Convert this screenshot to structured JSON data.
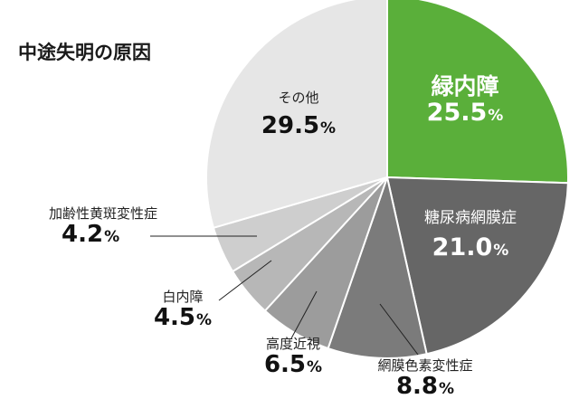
{
  "chart_data": {
    "type": "pie",
    "title": "中途失明の原因",
    "unit": "%",
    "slices": [
      {
        "label": "緑内障",
        "value": 25.5,
        "display": "25.5",
        "color": "#5aaf3a"
      },
      {
        "label": "糖尿病網膜症",
        "value": 21.0,
        "display": "21.0",
        "color": "#666666"
      },
      {
        "label": "網膜色素変性症",
        "value": 8.8,
        "display": "8.8",
        "color": "#7b7b7b"
      },
      {
        "label": "高度近視",
        "value": 6.5,
        "display": "6.5",
        "color": "#9c9c9c"
      },
      {
        "label": "白内障",
        "value": 4.5,
        "display": "4.5",
        "color": "#b7b7b7"
      },
      {
        "label": "加齢性黄斑変性症",
        "value": 4.2,
        "display": "4.2",
        "color": "#cecece"
      },
      {
        "label": "その他",
        "value": 29.5,
        "display": "29.5",
        "color": "#e6e6e6"
      }
    ],
    "start_angle_deg": 0,
    "direction": "clockwise",
    "legend": "none",
    "label_style": "callout"
  }
}
